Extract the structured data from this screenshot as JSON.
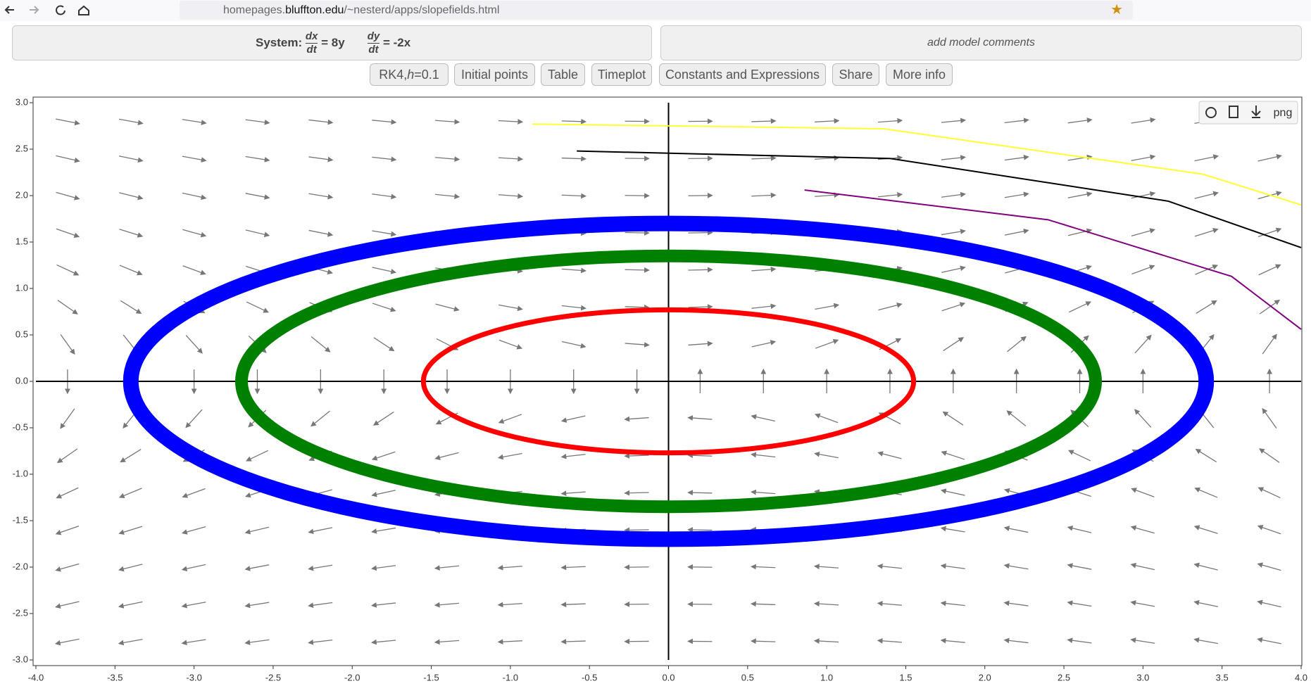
{
  "browser": {
    "url_prefix": "homepages.",
    "url_domain": "bluffton.edu",
    "url_path": "/~nesterd/apps/slopefields.html"
  },
  "system": {
    "label": "System:",
    "dx": "dx",
    "dy": "dy",
    "dt": "dt",
    "dx_rhs": "= 8y",
    "dy_rhs": "= -2x"
  },
  "comments": "add model comments",
  "buttons": {
    "method": "RK4, ",
    "method_h": "h",
    "method_step": "=0.1",
    "items": [
      "Initial points",
      "Table",
      "Timeplot",
      "Constants and Expressions",
      "Share",
      "More info"
    ]
  },
  "plot_tools": {
    "png": "png"
  },
  "chart_data": {
    "type": "phase-plane",
    "xlim": [
      -4,
      4
    ],
    "ylim": [
      -3,
      3
    ],
    "xticks": [
      {
        "value": -4,
        "label": "-4.0"
      },
      {
        "value": -3.5,
        "label": "-3.5"
      },
      {
        "value": -3,
        "label": "-3.0"
      },
      {
        "value": -2.5,
        "label": "-2.5"
      },
      {
        "value": -2,
        "label": "-2.0"
      },
      {
        "value": -1.5,
        "label": "-1.5"
      },
      {
        "value": -1,
        "label": "-1.0"
      },
      {
        "value": -0.5,
        "label": "-0.5"
      },
      {
        "value": 0,
        "label": "0.0"
      },
      {
        "value": 0.5,
        "label": "0.5"
      },
      {
        "value": 1,
        "label": "1.0"
      },
      {
        "value": 1.5,
        "label": "1.5"
      },
      {
        "value": 2,
        "label": "2.0"
      },
      {
        "value": 2.5,
        "label": "2.5"
      },
      {
        "value": 3,
        "label": "3.0"
      },
      {
        "value": 3.5,
        "label": "3.5"
      },
      {
        "value": 4,
        "label": "4.0"
      }
    ],
    "yticks": [
      {
        "value": -3,
        "label": "-3.0"
      },
      {
        "value": -2.5,
        "label": "-2.5"
      },
      {
        "value": -2,
        "label": "-2.0"
      },
      {
        "value": -1.5,
        "label": "-1.5"
      },
      {
        "value": -1,
        "label": "-1.0"
      },
      {
        "value": -0.5,
        "label": "-0.5"
      },
      {
        "value": 0,
        "label": "0.0"
      },
      {
        "value": 0.5,
        "label": "0.5"
      },
      {
        "value": 1,
        "label": "1.0"
      },
      {
        "value": 1.5,
        "label": "1.5"
      },
      {
        "value": 2,
        "label": "2.0"
      },
      {
        "value": 2.5,
        "label": "2.5"
      },
      {
        "value": 3,
        "label": "3.0"
      }
    ],
    "orbits": [
      {
        "color": "#0000ff",
        "rx": 3.4,
        "ry": 1.7
      },
      {
        "color": "#008000",
        "rx": 2.7,
        "ry": 1.35
      },
      {
        "color": "#ff0000",
        "rx": 1.55,
        "ry": 0.77
      }
    ],
    "series": [
      {
        "color": "#ffff33",
        "x": [
          -0.86,
          1.36,
          3.38,
          4.0
        ],
        "values": [
          2.77,
          2.72,
          2.23,
          1.9
        ]
      },
      {
        "color": "#000000",
        "x": [
          -0.58,
          1.4,
          3.16,
          4.0
        ],
        "values": [
          2.48,
          2.4,
          1.94,
          1.44
        ]
      },
      {
        "color": "#800080",
        "x": [
          0.86,
          2.4,
          3.56,
          4.0
        ],
        "values": [
          2.06,
          1.74,
          1.13,
          0.56
        ]
      }
    ]
  }
}
